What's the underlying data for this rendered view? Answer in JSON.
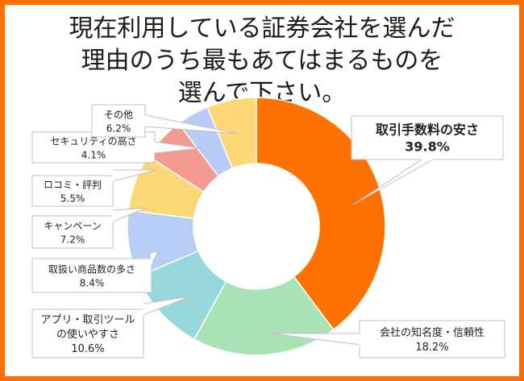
{
  "title": {
    "line1": "現在利用している証券会社を選んだ",
    "line2": "理由のうち最もあてはまるものを",
    "line3": "選んで下さい。"
  },
  "colors": {
    "frame": "#ff6f00",
    "slices": [
      "#ff7200",
      "#a9e3b5",
      "#96d8da",
      "#b8cdf6",
      "#fbd775",
      "#f39a91",
      "#b6cbf5",
      "#fdd677"
    ]
  },
  "chart_data": {
    "type": "pie",
    "donut": true,
    "title": "現在利用している証券会社を選んだ理由のうち最もあてはまるものを選んで下さい。",
    "unit": "%",
    "slices": [
      {
        "label_lines": [
          "取引手数料の安さ"
        ],
        "value": 39.8,
        "value_text": "39.8%"
      },
      {
        "label_lines": [
          "会社の知名度・信頼性"
        ],
        "value": 18.2,
        "value_text": "18.2%"
      },
      {
        "label_lines": [
          "アプリ・取引ツール",
          "の使いやすさ"
        ],
        "value": 10.6,
        "value_text": "10.6%"
      },
      {
        "label_lines": [
          "取扱い商品数の多さ"
        ],
        "value": 8.4,
        "value_text": "8.4%"
      },
      {
        "label_lines": [
          "キャンペーン"
        ],
        "value": 7.2,
        "value_text": "7.2%"
      },
      {
        "label_lines": [
          "ロコミ・評判"
        ],
        "value": 5.5,
        "value_text": "5.5%"
      },
      {
        "label_lines": [
          "セキュリティの高さ"
        ],
        "value": 4.1,
        "value_text": "4.1%"
      },
      {
        "label_lines": [
          "その他"
        ],
        "value": 6.2,
        "value_text": "6.2%"
      }
    ]
  }
}
